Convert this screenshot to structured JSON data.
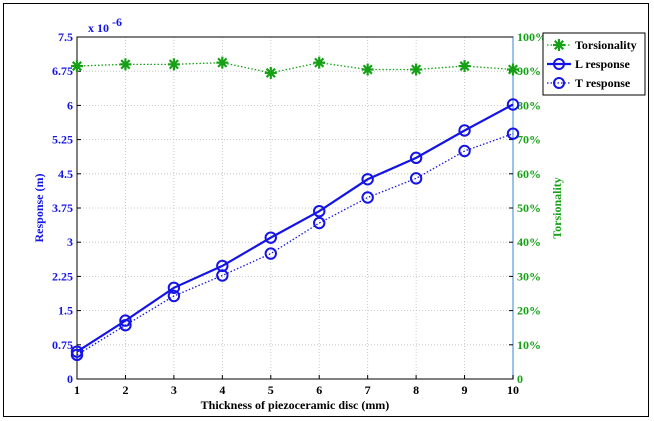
{
  "chart_data": {
    "type": "line",
    "xlabel": "Thickness of piezoceramic disc (mm)",
    "ylabel_left": "Response (m)",
    "ylabel_right": "Torsionality",
    "left_scale_note": "x 10",
    "left_scale_exponent": "-6",
    "x": [
      1,
      2,
      3,
      4,
      5,
      6,
      7,
      8,
      9,
      10
    ],
    "xlim": [
      1,
      10
    ],
    "ylim_left": [
      0,
      7.5
    ],
    "ylim_right": [
      0,
      100
    ],
    "x_ticks": [
      "1",
      "2",
      "3",
      "4",
      "5",
      "6",
      "7",
      "8",
      "9",
      "10"
    ],
    "y_ticks_left": [
      "0",
      "0.75",
      "1.5",
      "2.25",
      "3",
      "3.75",
      "4.5",
      "5.25",
      "6",
      "6.75",
      "7.5"
    ],
    "y_ticks_right": [
      "0",
      "10%",
      "20%",
      "30%",
      "40%",
      "50%",
      "60%",
      "70%",
      "80%",
      "90%",
      "100%"
    ],
    "grid": true,
    "legend_position": "top-right",
    "series": [
      {
        "name": "Torsionality",
        "axis": "right",
        "style": "dotted",
        "marker": "star",
        "color": "#16a016",
        "values": [
          91.5,
          92,
          92,
          92.5,
          89.5,
          92.5,
          90.5,
          90.5,
          91.5,
          90.5
        ]
      },
      {
        "name": "L response",
        "axis": "left",
        "style": "solid",
        "marker": "circle",
        "color": "#1414e6",
        "values": [
          0.6,
          1.28,
          2.0,
          2.48,
          3.1,
          3.68,
          4.38,
          4.85,
          5.45,
          6.02
        ]
      },
      {
        "name": "T response",
        "axis": "left",
        "style": "dotted",
        "marker": "circle",
        "color": "#1414e6",
        "values": [
          0.53,
          1.18,
          1.82,
          2.27,
          2.75,
          3.42,
          3.98,
          4.4,
          5.0,
          5.38
        ]
      }
    ]
  }
}
